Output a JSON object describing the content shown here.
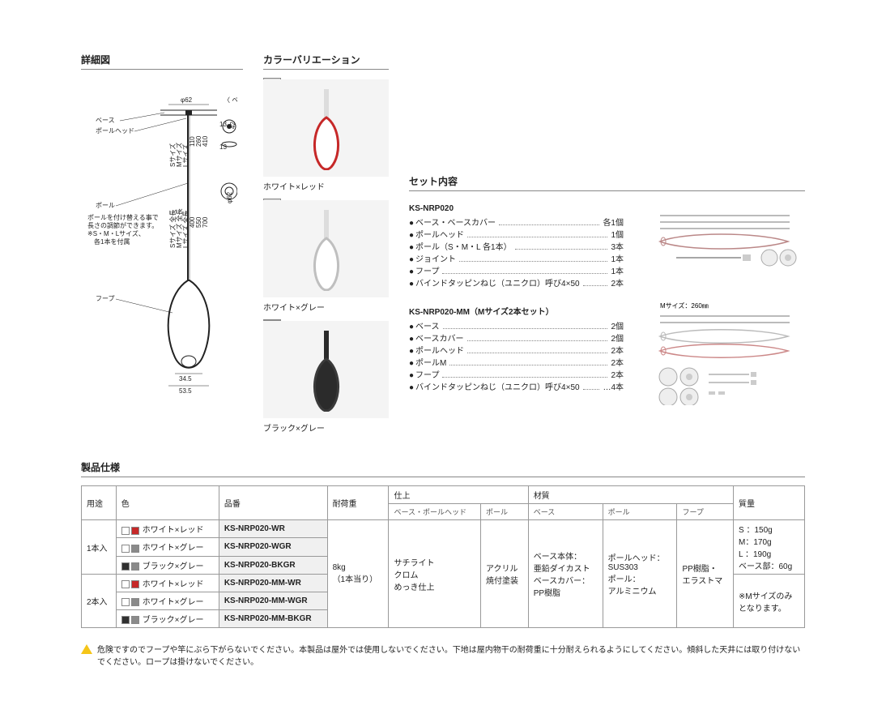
{
  "sections": {
    "detail_title": "詳細図",
    "color_title": "カラーバリエーション",
    "set_title": "セット内容",
    "spec_title": "製品仕様"
  },
  "detail_labels": {
    "base_label": "ベース",
    "pole_head": "ポールヘッド",
    "pole": "ポール",
    "hoop": "フープ",
    "base_paren": "〈 ベース 〉",
    "note1": "ポールを付け替える事で",
    "note2": "長さの調節ができます。",
    "note3": "※S・M・Lサイズ、",
    "note4": "　各1本を付属",
    "dim_phi62": "φ62",
    "dim_13a": "13",
    "dim_13b": "13",
    "dim_42": "42",
    "dim_62b": "φ62",
    "s_label": "Sサイズ",
    "m_label": "Mサイズ",
    "l_label": "Lサイズ",
    "s_total": "Sサイズ 全長",
    "m_total": "Mサイズ 全長",
    "l_total": "Lサイズ 全長",
    "len_110": "110",
    "len_260": "260",
    "len_410": "410",
    "len_400": "400",
    "len_550": "550",
    "len_700": "700",
    "dim_345": "34.5",
    "dim_535": "53.5"
  },
  "colors": [
    {
      "label": "ホワイト×レッド",
      "outer": "#d9d9d9",
      "inner": "#c62828",
      "loop": "#c62828",
      "body": "#ffffff"
    },
    {
      "label": "ホワイト×グレー",
      "outer": "#d9d9d9",
      "inner": "#8a8a8a",
      "loop": "#bfbfbf",
      "body": "#ffffff"
    },
    {
      "label": "ブラック×グレー",
      "outer": "#8a8a8a",
      "inner": "#303030",
      "loop": "#3a3a3a",
      "body": "#2b2b2b"
    }
  ],
  "set1": {
    "heading": "KS-NRP020",
    "items": [
      {
        "name": "ベース・ベースカバー",
        "qty": "各1個"
      },
      {
        "name": "ポールヘッド",
        "qty": "1個"
      },
      {
        "name": "ポール（S・M・L 各1本）",
        "qty": "3本"
      },
      {
        "name": "ジョイント",
        "qty": "1本"
      },
      {
        "name": "フープ",
        "qty": "1本"
      },
      {
        "name": "バインドタッピンねじ（ユニクロ）呼び4×50",
        "qty": "2本"
      }
    ]
  },
  "set2": {
    "heading": "KS-NRP020-MM（Mサイズ2本セット）",
    "msize_note": "Mサイズ：260㎜",
    "items": [
      {
        "name": "ベース",
        "qty": "2個"
      },
      {
        "name": "ベースカバー",
        "qty": "2個"
      },
      {
        "name": "ポールヘッド",
        "qty": "2本"
      },
      {
        "name": "ポールM",
        "qty": "2本"
      },
      {
        "name": "フープ",
        "qty": "2本"
      },
      {
        "name": "バインドタッピンねじ（ユニクロ）呼び4×50",
        "qty": "…4本"
      }
    ]
  },
  "spec": {
    "headers": {
      "use": "用途",
      "color": "色",
      "part": "品番",
      "load": "耐荷重",
      "finish": "仕上",
      "finish_sub1": "ベース・ポールヘッド",
      "finish_sub2": "ポール",
      "material": "材質",
      "mat_sub1": "ベース",
      "mat_sub2": "ポール",
      "mat_sub3": "フープ",
      "mass": "質量"
    },
    "load_val": "8kg\n（1本当り）",
    "finish_val1": "サチライト\nクロム\nめっき仕上",
    "finish_val2": "アクリル\n焼付塗装",
    "mat_val1": "ベース本体：\n亜鉛ダイカスト\nベースカバー：\nPP樹脂",
    "mat_val2": "ポールヘッド：\nSUS303\nポール：\nアルミニウム",
    "mat_val3": "PP樹脂・\nエラストマ",
    "mass_val": "S ：150g\nM：170g\nL ：190g\nベース部：60g",
    "mass_note": "※Mサイズのみ\nとなります。",
    "rows": [
      {
        "use": "1本入",
        "span": 3,
        "color": "ホワイト×レッド",
        "sw1": "#ffffff",
        "sw2": "#c62828",
        "part": "KS-NRP020-WR"
      },
      {
        "color": "ホワイト×グレー",
        "sw1": "#ffffff",
        "sw2": "#8a8a8a",
        "part": "KS-NRP020-WGR"
      },
      {
        "color": "ブラック×グレー",
        "sw1": "#303030",
        "sw2": "#8a8a8a",
        "part": "KS-NRP020-BKGR"
      },
      {
        "use": "2本入",
        "span": 3,
        "color": "ホワイト×レッド",
        "sw1": "#ffffff",
        "sw2": "#c62828",
        "part": "KS-NRP020-MM-WR"
      },
      {
        "color": "ホワイト×グレー",
        "sw1": "#ffffff",
        "sw2": "#8a8a8a",
        "part": "KS-NRP020-MM-WGR"
      },
      {
        "color": "ブラック×グレー",
        "sw1": "#303030",
        "sw2": "#8a8a8a",
        "part": "KS-NRP020-MM-BKGR"
      }
    ]
  },
  "warning": "危険ですのでフープや竿にぶら下がらないでください。本製品は屋外では使用しないでください。下地は屋内物干の耐荷重に十分耐えられるようにしてください。傾斜した天井には取り付けないでください。ロープは掛けないでください。"
}
